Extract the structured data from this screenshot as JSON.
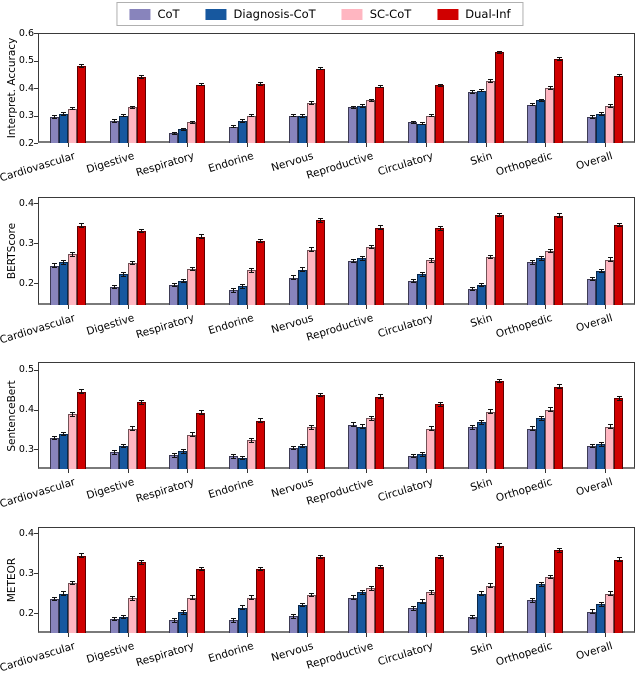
{
  "legend": {
    "items": [
      {
        "label": "CoT",
        "color": "#8884bc"
      },
      {
        "label": "Diagnosis-CoT",
        "color": "#17589f"
      },
      {
        "label": "SC-CoT",
        "color": "#ffb6c1"
      },
      {
        "label": "Dual-Inf",
        "color": "#d00000"
      }
    ]
  },
  "chart_data": {
    "type": "bar",
    "categories": [
      "Cardiovascular",
      "Digestive",
      "Respiratory",
      "Endorine",
      "Nervous",
      "Reproductive",
      "Circulatory",
      "Skin",
      "Orthopedic",
      "Overall"
    ],
    "series_names": [
      "CoT",
      "Diagnosis-CoT",
      "SC-CoT",
      "Dual-Inf"
    ],
    "legend_position": "top-center",
    "grid": false,
    "error_bar": 0.006,
    "panels": [
      {
        "ylabel": "Interpret. Accuracy",
        "ylim": [
          0.2,
          0.6
        ],
        "yticks": [
          0.2,
          0.3,
          0.4,
          0.5,
          0.6
        ],
        "series": [
          {
            "name": "CoT",
            "values": [
              0.295,
              0.28,
              0.235,
              0.26,
              0.3,
              0.33,
              0.275,
              0.385,
              0.34,
              0.295
            ]
          },
          {
            "name": "Diagnosis-CoT",
            "values": [
              0.305,
              0.3,
              0.25,
              0.28,
              0.298,
              0.335,
              0.27,
              0.39,
              0.355,
              0.305
            ]
          },
          {
            "name": "SC-CoT",
            "values": [
              0.325,
              0.33,
              0.275,
              0.3,
              0.345,
              0.355,
              0.3,
              0.425,
              0.4,
              0.335
            ]
          },
          {
            "name": "Dual-Inf",
            "values": [
              0.48,
              0.44,
              0.412,
              0.415,
              0.47,
              0.405,
              0.41,
              0.53,
              0.505,
              0.445
            ]
          }
        ]
      },
      {
        "ylabel": "BERTScore",
        "ylim": [
          0.145,
          0.415
        ],
        "yticks": [
          0.2,
          0.3,
          0.4
        ],
        "series": [
          {
            "name": "CoT",
            "values": [
              0.243,
              0.19,
              0.195,
              0.182,
              0.213,
              0.255,
              0.205,
              0.185,
              0.252,
              0.21
            ]
          },
          {
            "name": "Diagnosis-CoT",
            "values": [
              0.252,
              0.222,
              0.205,
              0.192,
              0.233,
              0.262,
              0.222,
              0.195,
              0.262,
              0.23
            ]
          },
          {
            "name": "SC-CoT",
            "values": [
              0.272,
              0.25,
              0.235,
              0.232,
              0.283,
              0.29,
              0.257,
              0.265,
              0.28,
              0.258
            ]
          },
          {
            "name": "Dual-Inf",
            "values": [
              0.343,
              0.33,
              0.316,
              0.305,
              0.357,
              0.338,
              0.337,
              0.37,
              0.368,
              0.345
            ]
          }
        ]
      },
      {
        "ylabel": "SentenceBert",
        "ylim": [
          0.25,
          0.52
        ],
        "yticks": [
          0.3,
          0.4,
          0.5
        ],
        "series": [
          {
            "name": "CoT",
            "values": [
              0.328,
              0.292,
              0.285,
              0.282,
              0.303,
              0.362,
              0.283,
              0.355,
              0.352,
              0.308
            ]
          },
          {
            "name": "Diagnosis-CoT",
            "values": [
              0.338,
              0.308,
              0.295,
              0.278,
              0.308,
              0.357,
              0.287,
              0.368,
              0.378,
              0.312
            ]
          },
          {
            "name": "SC-CoT",
            "values": [
              0.388,
              0.352,
              0.337,
              0.322,
              0.355,
              0.378,
              0.352,
              0.395,
              0.4,
              0.357
            ]
          },
          {
            "name": "Dual-Inf",
            "values": [
              0.445,
              0.418,
              0.392,
              0.372,
              0.437,
              0.432,
              0.413,
              0.472,
              0.458,
              0.428
            ]
          }
        ]
      },
      {
        "ylabel": "METEOR",
        "ylim": [
          0.15,
          0.415
        ],
        "yticks": [
          0.2,
          0.3,
          0.4
        ],
        "series": [
          {
            "name": "CoT",
            "values": [
              0.235,
              0.185,
              0.182,
              0.182,
              0.192,
              0.238,
              0.212,
              0.19,
              0.232,
              0.203
            ]
          },
          {
            "name": "Diagnosis-CoT",
            "values": [
              0.248,
              0.19,
              0.202,
              0.213,
              0.22,
              0.252,
              0.228,
              0.248,
              0.272,
              0.222
            ]
          },
          {
            "name": "SC-CoT",
            "values": [
              0.275,
              0.237,
              0.238,
              0.238,
              0.245,
              0.262,
              0.252,
              0.268,
              0.29,
              0.248
            ]
          },
          {
            "name": "Dual-Inf",
            "values": [
              0.343,
              0.327,
              0.31,
              0.31,
              0.34,
              0.315,
              0.34,
              0.368,
              0.357,
              0.333
            ]
          }
        ]
      }
    ]
  }
}
